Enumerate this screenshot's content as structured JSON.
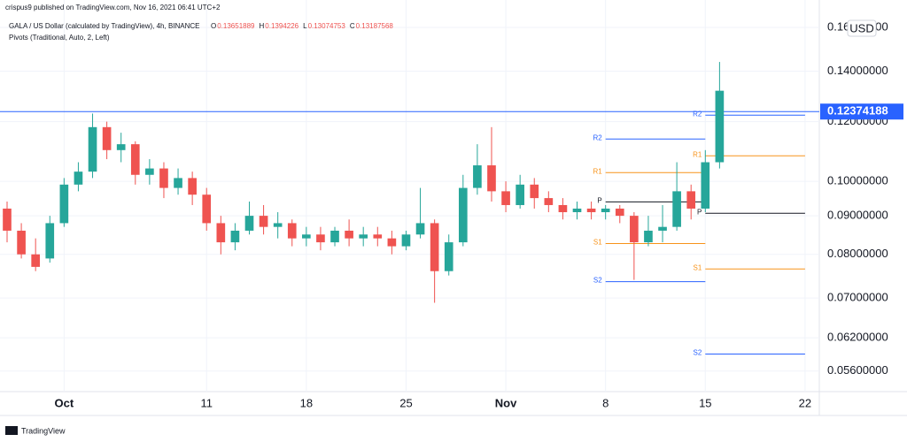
{
  "chart_data": {
    "type": "candlestick",
    "header": {
      "publisher": "crispus9 published on TradingView.com, Nov 16, 2021 06:41 UTC+2",
      "symbol": "GALA / US Dollar (calculated by TradingView), 4h, BINANCE",
      "legend": [
        {
          "letter": "O",
          "value": 0.13651889
        },
        {
          "letter": "H",
          "value": 0.1394226
        },
        {
          "letter": "L",
          "value": 0.13074753
        },
        {
          "letter": "C",
          "value": 0.13187568
        }
      ],
      "indicator": "Pivots (Traditional, Auto, 2, Left)"
    },
    "currency": "USD",
    "footer": "TradingView",
    "up_color": "#26a69a",
    "down_color": "#ef5350",
    "log_scale": true,
    "grid": true,
    "xlim": [
      0,
      57
    ],
    "ylim": [
      0.0526,
      0.174
    ],
    "xticks": [
      {
        "value": 4,
        "label": "Oct"
      },
      {
        "value": 14,
        "label": "11"
      },
      {
        "value": 21,
        "label": "18"
      },
      {
        "value": 28,
        "label": "25"
      },
      {
        "value": 35,
        "label": "Nov"
      },
      {
        "value": 42,
        "label": "8"
      },
      {
        "value": 49,
        "label": "15"
      },
      {
        "value": 56,
        "label": "22"
      }
    ],
    "yticks": [
      {
        "value": 0.16,
        "label": "0.16000000"
      },
      {
        "value": 0.14,
        "label": "0.14000000"
      },
      {
        "value": 0.12,
        "label": "0.12000000"
      },
      {
        "value": 0.1,
        "label": "0.10000000"
      },
      {
        "value": 0.09,
        "label": "0.09000000"
      },
      {
        "value": 0.08,
        "label": "0.08000000"
      },
      {
        "value": 0.07,
        "label": "0.07000000"
      },
      {
        "value": 0.062,
        "label": "0.06200000"
      },
      {
        "value": 0.056,
        "label": "0.05600000"
      }
    ],
    "open": [
      0.092,
      0.086,
      0.08,
      0.079,
      0.088,
      0.099,
      0.103,
      0.118,
      0.11,
      0.112,
      0.102,
      0.104,
      0.098,
      0.101,
      0.096,
      0.088,
      0.083,
      0.086,
      0.09,
      0.087,
      0.088,
      0.084,
      0.085,
      0.083,
      0.086,
      0.084,
      0.085,
      0.084,
      0.082,
      0.085,
      0.088,
      0.076,
      0.083,
      0.098,
      0.105,
      0.097,
      0.093,
      0.099,
      0.095,
      0.093,
      0.091,
      0.092,
      0.091,
      0.092,
      0.09,
      0.083,
      0.086,
      0.087,
      0.097,
      0.092,
      0.106
    ],
    "high": [
      0.094,
      0.088,
      0.084,
      0.09,
      0.101,
      0.106,
      0.123,
      0.12,
      0.116,
      0.113,
      0.107,
      0.106,
      0.104,
      0.103,
      0.098,
      0.09,
      0.088,
      0.094,
      0.093,
      0.091,
      0.089,
      0.087,
      0.087,
      0.087,
      0.089,
      0.087,
      0.087,
      0.086,
      0.086,
      0.098,
      0.089,
      0.085,
      0.102,
      0.112,
      0.118,
      0.1,
      0.102,
      0.101,
      0.097,
      0.095,
      0.094,
      0.094,
      0.093,
      0.093,
      0.091,
      0.09,
      0.093,
      0.106,
      0.099,
      0.11,
      0.144
    ],
    "low": [
      0.083,
      0.079,
      0.076,
      0.078,
      0.087,
      0.097,
      0.101,
      0.107,
      0.106,
      0.099,
      0.099,
      0.095,
      0.096,
      0.093,
      0.086,
      0.08,
      0.081,
      0.085,
      0.085,
      0.084,
      0.082,
      0.082,
      0.081,
      0.082,
      0.082,
      0.082,
      0.082,
      0.08,
      0.081,
      0.084,
      0.069,
      0.075,
      0.082,
      0.096,
      0.094,
      0.091,
      0.092,
      0.092,
      0.091,
      0.089,
      0.089,
      0.089,
      0.089,
      0.088,
      0.074,
      0.082,
      0.083,
      0.086,
      0.089,
      0.091,
      0.104
    ],
    "close": [
      0.086,
      0.08,
      0.077,
      0.088,
      0.099,
      0.103,
      0.118,
      0.11,
      0.112,
      0.102,
      0.104,
      0.098,
      0.101,
      0.096,
      0.088,
      0.083,
      0.086,
      0.09,
      0.087,
      0.088,
      0.084,
      0.085,
      0.083,
      0.086,
      0.084,
      0.085,
      0.084,
      0.082,
      0.085,
      0.088,
      0.076,
      0.083,
      0.098,
      0.105,
      0.097,
      0.093,
      0.099,
      0.095,
      0.093,
      0.091,
      0.092,
      0.091,
      0.092,
      0.09,
      0.083,
      0.086,
      0.087,
      0.097,
      0.092,
      0.106,
      0.13187568
    ],
    "price_line": {
      "value": 0.12374188,
      "color": "#2962ff"
    },
    "pivots": [
      {
        "start": 42,
        "end": 49,
        "levels": [
          {
            "label": "R2",
            "value": 0.1138,
            "color": "#2962ff"
          },
          {
            "label": "R1",
            "value": 0.1027,
            "color": "#f7931a"
          },
          {
            "label": "P",
            "value": 0.0939,
            "color": "#131722"
          },
          {
            "label": "S1",
            "value": 0.0827,
            "color": "#f7931a"
          },
          {
            "label": "S2",
            "value": 0.0736,
            "color": "#2962ff"
          }
        ]
      },
      {
        "start": 49,
        "end": 56,
        "levels": [
          {
            "label": "R2",
            "value": 0.1224,
            "color": "#2962ff"
          },
          {
            "label": "R1",
            "value": 0.1081,
            "color": "#f7931a"
          },
          {
            "label": "P",
            "value": 0.0907,
            "color": "#131722"
          },
          {
            "label": "S1",
            "value": 0.0765,
            "color": "#f7931a"
          },
          {
            "label": "S2",
            "value": 0.059,
            "color": "#2962ff"
          }
        ]
      }
    ]
  }
}
